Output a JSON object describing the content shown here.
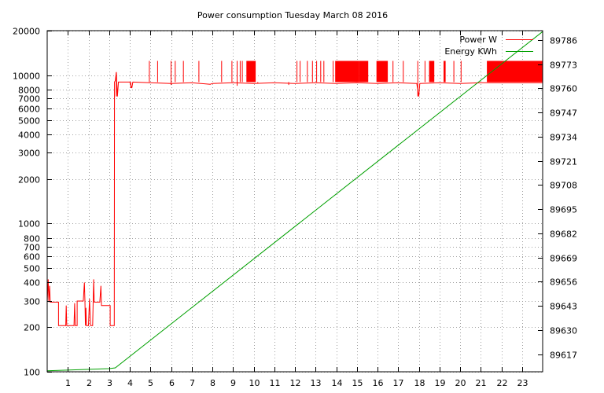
{
  "chart_data": {
    "type": "line",
    "title": "Power consumption Tuesday March 08 2016",
    "xlabel": "",
    "ylabel": "",
    "xlim": [
      0,
      24
    ],
    "x_ticks": [
      1,
      2,
      3,
      4,
      5,
      6,
      7,
      8,
      9,
      10,
      11,
      12,
      13,
      14,
      15,
      16,
      17,
      18,
      19,
      20,
      21,
      22,
      23
    ],
    "y_scale": "log",
    "ylim": [
      100,
      20000
    ],
    "y_ticks": [
      {
        "value": 100,
        "label": "100"
      },
      {
        "value": 200,
        "label": "200"
      },
      {
        "value": 300,
        "label": "300"
      },
      {
        "value": 400,
        "label": "400"
      },
      {
        "value": 500,
        "label": "500"
      },
      {
        "value": 600,
        "label": "600"
      },
      {
        "value": 700,
        "label": "700"
      },
      {
        "value": 800,
        "label": "800"
      },
      {
        "value": 1000,
        "label": "1000"
      },
      {
        "value": 2000,
        "label": "2000"
      },
      {
        "value": 3000,
        "label": "3000"
      },
      {
        "value": 4000,
        "label": "4000"
      },
      {
        "value": 5000,
        "label": "5000"
      },
      {
        "value": 6000,
        "label": "6000"
      },
      {
        "value": 7000,
        "label": "7000"
      },
      {
        "value": 8000,
        "label": "8000"
      },
      {
        "value": 10000,
        "label": "10000"
      },
      {
        "value": 20000,
        "label": "20000"
      }
    ],
    "y2lim": [
      89607.5,
      89791
    ],
    "y2_ticks": [
      89617,
      89630,
      89643,
      89656,
      89669,
      89682,
      89695,
      89708,
      89721,
      89734,
      89747,
      89760,
      89773,
      89786
    ],
    "grid": true,
    "legend_position": "top-right",
    "series": [
      {
        "name": "Power W",
        "axis": "left",
        "color": "#ff0000",
        "points": [
          [
            0.0,
            295
          ],
          [
            0.05,
            420
          ],
          [
            0.08,
            295
          ],
          [
            0.12,
            380
          ],
          [
            0.15,
            295
          ],
          [
            0.55,
            295
          ],
          [
            0.55,
            205
          ],
          [
            0.9,
            205
          ],
          [
            0.92,
            280
          ],
          [
            0.95,
            205
          ],
          [
            1.3,
            205
          ],
          [
            1.33,
            290
          ],
          [
            1.36,
            205
          ],
          [
            1.45,
            205
          ],
          [
            1.45,
            300
          ],
          [
            1.75,
            300
          ],
          [
            1.8,
            400
          ],
          [
            1.83,
            300
          ],
          [
            1.85,
            205
          ],
          [
            1.88,
            270
          ],
          [
            1.9,
            205
          ],
          [
            2.0,
            205
          ],
          [
            2.05,
            310
          ],
          [
            2.1,
            205
          ],
          [
            2.2,
            205
          ],
          [
            2.25,
            420
          ],
          [
            2.28,
            295
          ],
          [
            2.4,
            295
          ],
          [
            2.55,
            295
          ],
          [
            2.6,
            380
          ],
          [
            2.63,
            280
          ],
          [
            2.75,
            280
          ],
          [
            3.05,
            280
          ],
          [
            3.05,
            205
          ],
          [
            3.25,
            205
          ],
          [
            3.26,
            9000
          ],
          [
            3.3,
            9200
          ],
          [
            3.35,
            10500
          ],
          [
            3.4,
            7200
          ],
          [
            3.45,
            9000
          ],
          [
            4.0,
            9000
          ],
          [
            4.1,
            8200
          ],
          [
            4.15,
            9000
          ],
          [
            5.0,
            8900
          ],
          [
            6.0,
            8800
          ],
          [
            7.0,
            8900
          ],
          [
            7.9,
            8700
          ],
          [
            8.0,
            8800
          ],
          [
            9.0,
            8900
          ],
          [
            10.0,
            8800
          ],
          [
            11.0,
            8900
          ],
          [
            12.0,
            8800
          ],
          [
            13.0,
            8900
          ],
          [
            14.0,
            8800
          ],
          [
            15.0,
            8900
          ],
          [
            16.0,
            8800
          ],
          [
            17.0,
            8900
          ],
          [
            17.9,
            8800
          ],
          [
            18.0,
            7200
          ],
          [
            18.05,
            8800
          ],
          [
            19.0,
            8900
          ],
          [
            20.0,
            8800
          ],
          [
            21.0,
            8900
          ],
          [
            24.0,
            8900
          ]
        ],
        "switching_bursts": [
          [
            9.65,
            10.1,
            9000,
            12500
          ],
          [
            13.95,
            15.1,
            9000,
            12500
          ],
          [
            15.1,
            15.55,
            9000,
            12500
          ],
          [
            15.95,
            16.5,
            9000,
            12500
          ],
          [
            18.5,
            18.75,
            9000,
            12500
          ],
          [
            19.2,
            19.3,
            9000,
            12500
          ],
          [
            21.3,
            24.0,
            9000,
            12500
          ]
        ],
        "spikes": [
          [
            3.35,
            7200,
            10500
          ],
          [
            4.05,
            8200,
            9000
          ],
          [
            4.95,
            9000,
            12500
          ],
          [
            5.35,
            9000,
            12500
          ],
          [
            6.0,
            8600,
            12500
          ],
          [
            6.2,
            9000,
            12500
          ],
          [
            6.6,
            9000,
            12500
          ],
          [
            7.35,
            9000,
            12500
          ],
          [
            8.45,
            9000,
            12500
          ],
          [
            8.95,
            9000,
            12500
          ],
          [
            9.2,
            8500,
            12500
          ],
          [
            9.35,
            9000,
            12500
          ],
          [
            9.45,
            9000,
            12500
          ],
          [
            10.2,
            8800,
            9000
          ],
          [
            11.7,
            8600,
            9000
          ],
          [
            12.1,
            9000,
            12500
          ],
          [
            12.25,
            9000,
            12500
          ],
          [
            12.6,
            9000,
            12500
          ],
          [
            12.85,
            9000,
            12500
          ],
          [
            13.05,
            9000,
            12500
          ],
          [
            13.25,
            9000,
            12500
          ],
          [
            13.4,
            9000,
            12500
          ],
          [
            13.85,
            9000,
            12500
          ],
          [
            16.75,
            9000,
            12500
          ],
          [
            17.25,
            9000,
            12500
          ],
          [
            17.95,
            7200,
            12500
          ],
          [
            18.3,
            9000,
            12500
          ],
          [
            19.7,
            9000,
            12500
          ],
          [
            20.05,
            9000,
            12500
          ]
        ]
      },
      {
        "name": "Energy KWh",
        "axis": "right",
        "color": "#00a000",
        "points": [
          [
            0,
            89608
          ],
          [
            3.0,
            89609.2
          ],
          [
            3.3,
            89609.6
          ],
          [
            24,
            89790.5
          ]
        ]
      }
    ]
  }
}
